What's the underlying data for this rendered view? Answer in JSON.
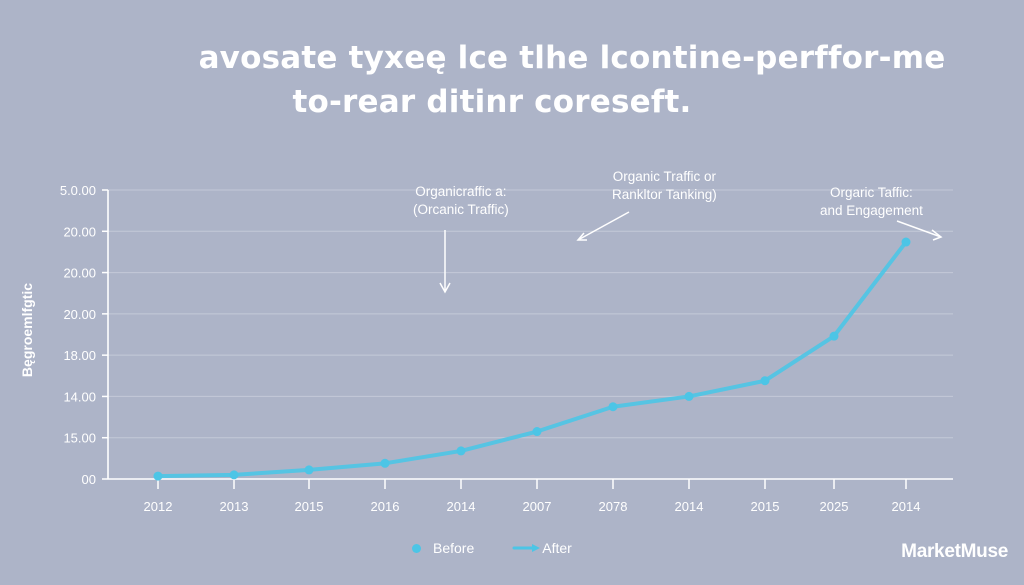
{
  "title": {
    "line1": "avosate tyxeę lce tlhe lcontine-perffor-me",
    "line2": "to-rear ditinr coreseft."
  },
  "annotations": [
    {
      "line1": "Organicraffic a:",
      "line2": "(Orcanic Traffic)"
    },
    {
      "line1": "Organic Traffic or",
      "line2": "Rankltor Tanking)"
    },
    {
      "line1": "Orgaric Taffic:",
      "line2": "and Engagement"
    }
  ],
  "legend": {
    "before": "Before",
    "after": "After"
  },
  "brand": "MarketMuse",
  "colors": {
    "background": "#adb4c8",
    "line": "#4cc5e6",
    "grid": "#c4c9d8",
    "text": "#ffffff"
  },
  "chart_data": {
    "type": "line",
    "title": "avosate tyxeę lce tlhe lcontine-perffor-me to-rear ditinr coreseft.",
    "xlabel": "",
    "ylabel": "Bęgroemlfgtic",
    "categories": [
      "2012",
      "2013",
      "2015",
      "2016",
      "2014",
      "2007",
      "2078",
      "2014",
      "2015",
      "2025",
      "2014"
    ],
    "y_tick_labels": [
      "00",
      "15.00",
      "14.00",
      "18.00",
      "20.00",
      "20.00",
      "20.00",
      "5.0.00"
    ],
    "ylim_pixels_note": "axis labels are non-monotonic; values estimated on a 0-7 index scale (one unit per gridline)",
    "series": [
      {
        "name": "After",
        "values": [
          0.07,
          0.1,
          0.22,
          0.38,
          0.68,
          1.15,
          1.75,
          2.0,
          2.38,
          3.46,
          5.74
        ]
      }
    ],
    "annotations": [
      "Organicraffic a: (Orcanic Traffic)",
      "Organic Traffic or Rankltor Tanking)",
      "Orgaric Taffic: and Engagement"
    ],
    "legend": [
      "Before",
      "After"
    ],
    "legend_position": "bottom",
    "grid": true
  }
}
